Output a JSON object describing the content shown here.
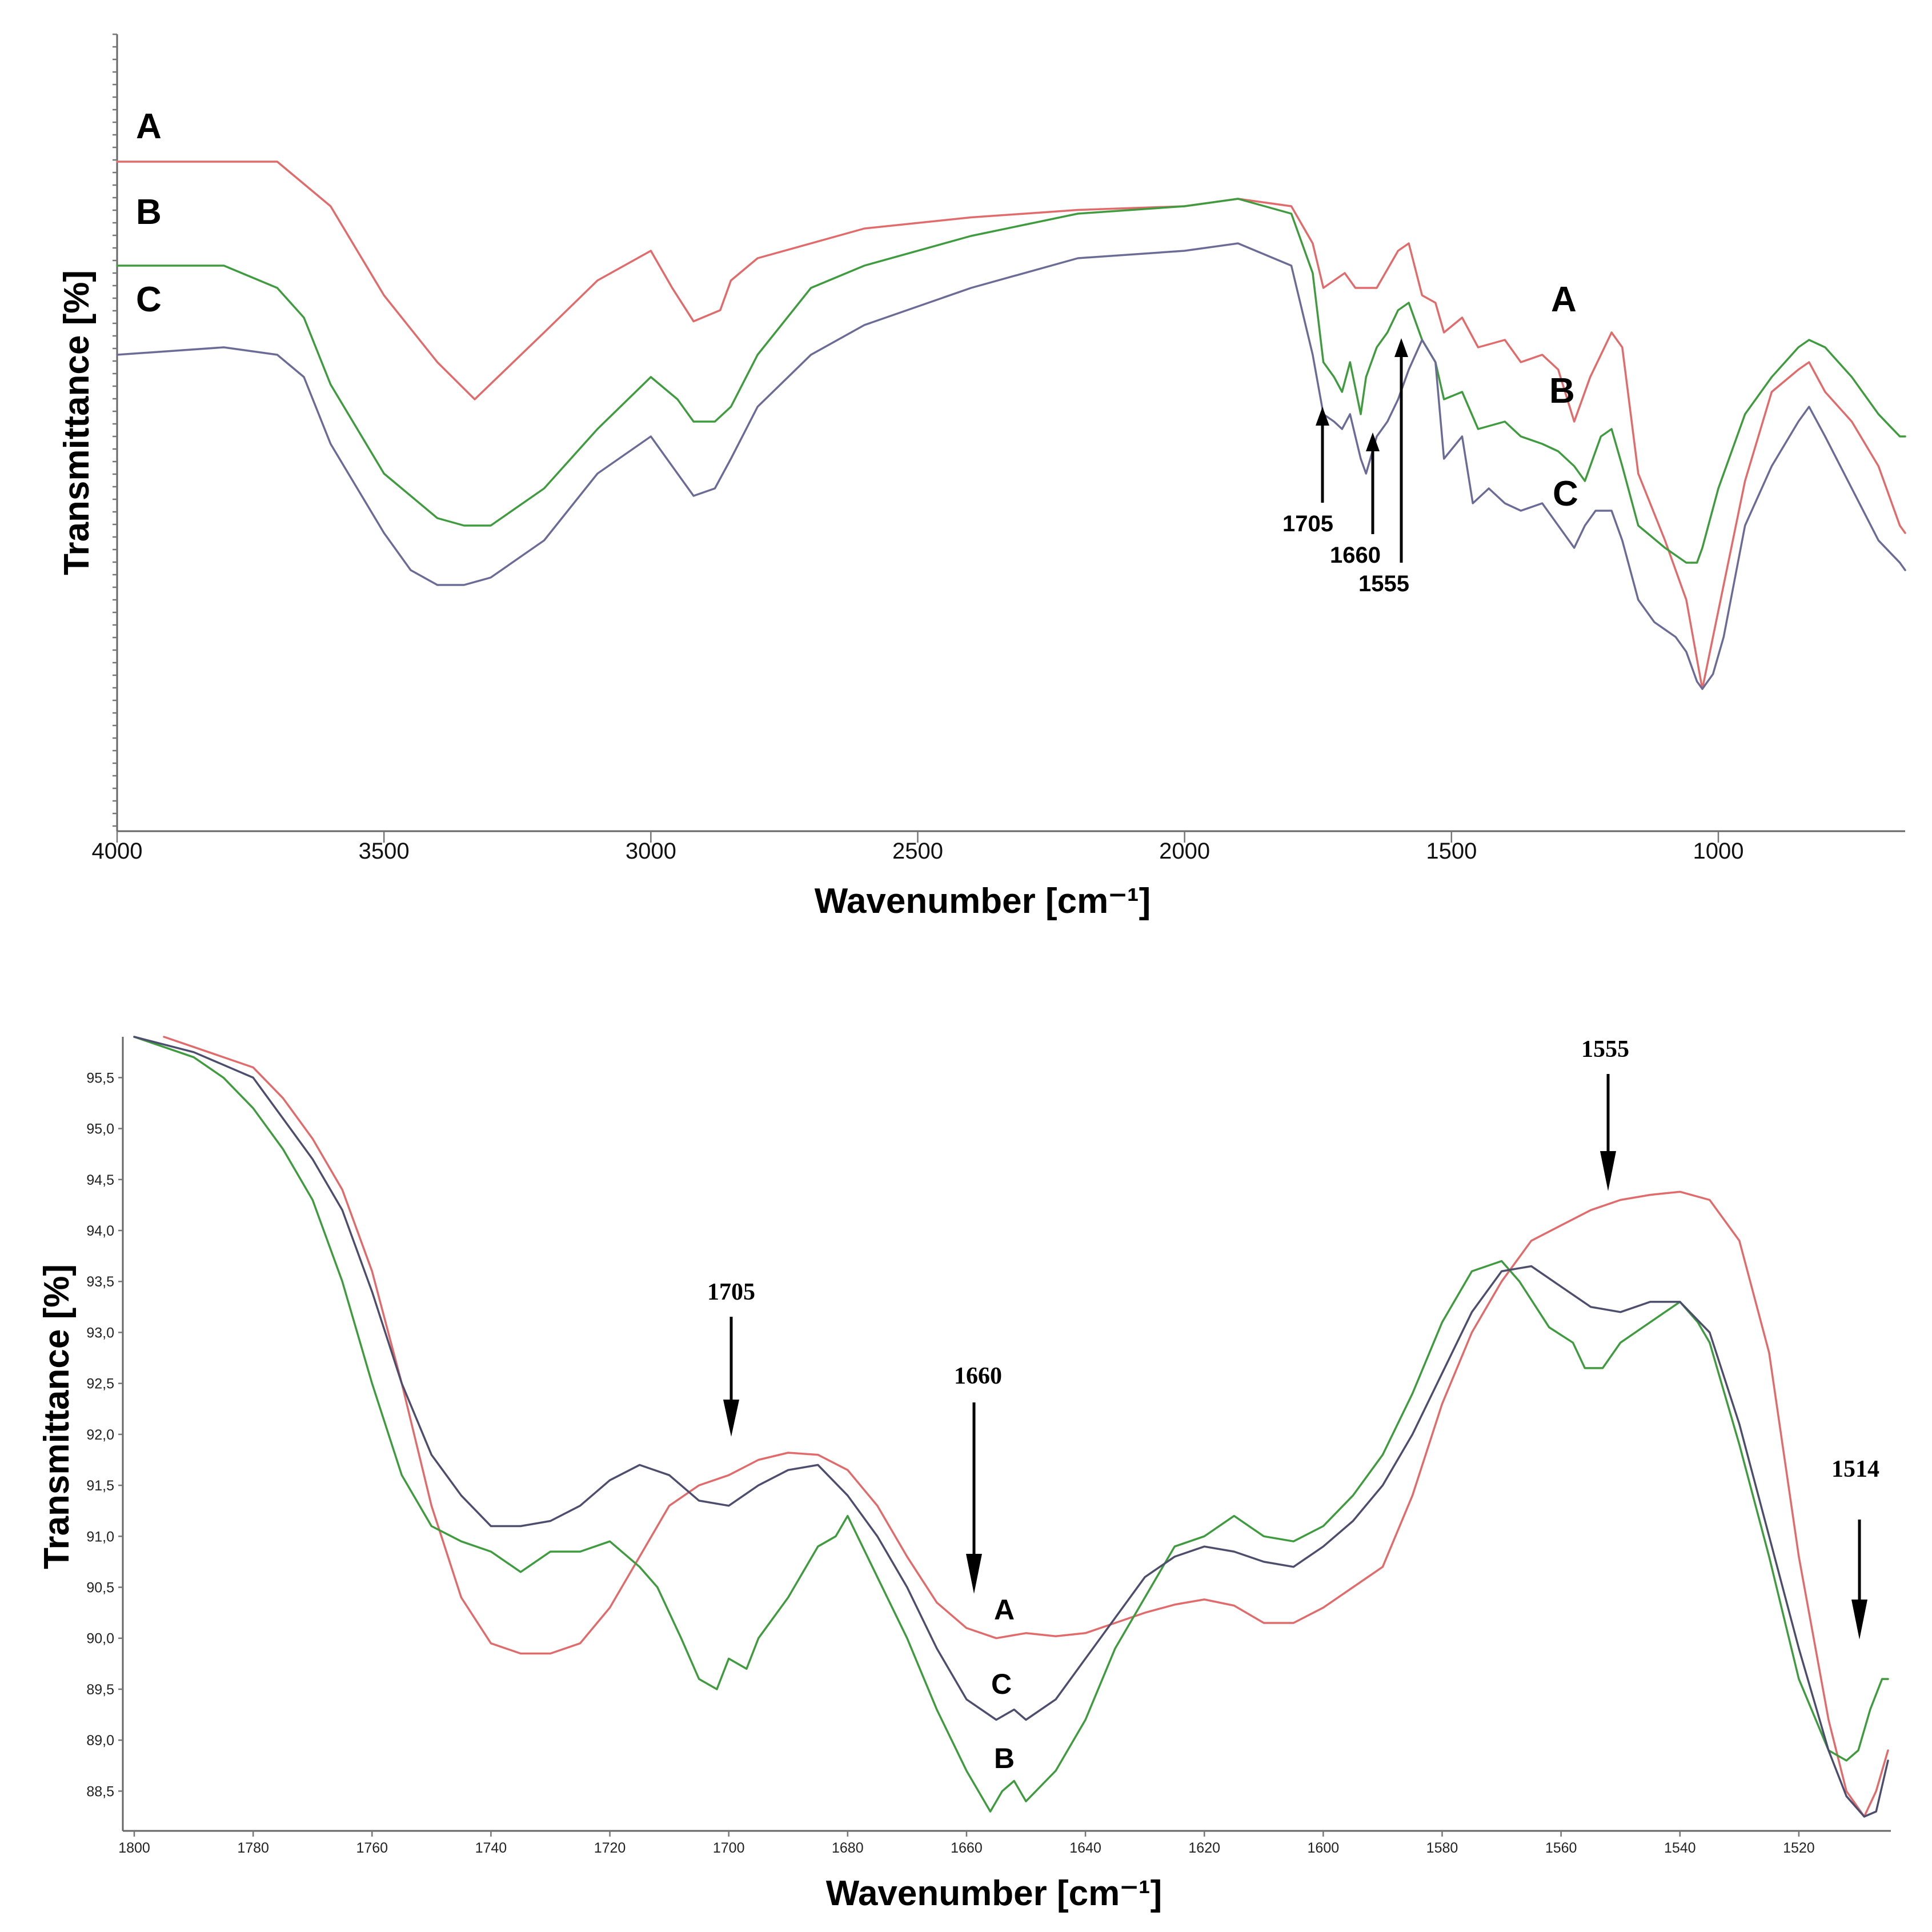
{
  "chart_data": [
    {
      "type": "line",
      "title": "",
      "xlabel": "Wavenumber [cm⁻¹]",
      "ylabel": "Transmittance [%]",
      "xlim": [
        4000,
        650
      ],
      "ylim": [
        0,
        100
      ],
      "x_ticks": [
        "4000",
        "3500",
        "3000",
        "2500",
        "2000",
        "1500",
        "1000"
      ],
      "series": [
        {
          "name": "A",
          "color": "#e26a6a",
          "x": [
            4000,
            3700,
            3600,
            3500,
            3400,
            3330,
            3200,
            3100,
            3000,
            2960,
            2920,
            2870,
            2850,
            2800,
            2600,
            2400,
            2200,
            2000,
            1900,
            1800,
            1760,
            1740,
            1700,
            1680,
            1640,
            1600,
            1580,
            1555,
            1530,
            1514,
            1480,
            1450,
            1400,
            1370,
            1330,
            1300,
            1270,
            1240,
            1200,
            1180,
            1150,
            1100,
            1060,
            1040,
            1030,
            1010,
            990,
            950,
            900,
            850,
            830,
            800,
            750,
            700,
            660,
            650
          ],
          "y": [
            89,
            89,
            83,
            71,
            62,
            57,
            66,
            73,
            77,
            72,
            67.5,
            69,
            73,
            76,
            80,
            81.5,
            82.5,
            83,
            84,
            83,
            78,
            72,
            74,
            72,
            72,
            77,
            78,
            71,
            70,
            66,
            68,
            64,
            65,
            62,
            63,
            61,
            54,
            60,
            66,
            64,
            47,
            38,
            30,
            22,
            18,
            25,
            32,
            46,
            58,
            61,
            62,
            58,
            54,
            48,
            40,
            39
          ]
        },
        {
          "name": "B",
          "color": "#3e9b3e",
          "x": [
            4000,
            3800,
            3700,
            3650,
            3600,
            3500,
            3400,
            3350,
            3300,
            3200,
            3100,
            3000,
            2950,
            2920,
            2880,
            2850,
            2800,
            2700,
            2600,
            2400,
            2200,
            2000,
            1900,
            1800,
            1760,
            1740,
            1720,
            1705,
            1690,
            1670,
            1660,
            1640,
            1620,
            1600,
            1580,
            1555,
            1530,
            1514,
            1480,
            1450,
            1400,
            1370,
            1330,
            1300,
            1270,
            1250,
            1220,
            1200,
            1180,
            1150,
            1100,
            1060,
            1040,
            1030,
            1000,
            950,
            900,
            850,
            830,
            800,
            750,
            700,
            660,
            650
          ],
          "y": [
            75,
            75,
            72,
            68,
            59,
            47,
            41,
            40,
            40,
            45,
            53,
            60,
            57,
            54,
            54,
            56,
            63,
            72,
            75,
            79,
            82,
            83,
            84,
            82,
            74,
            62,
            60,
            58,
            62,
            55,
            60,
            64,
            66,
            69,
            70,
            65,
            62,
            57,
            58,
            53,
            54,
            52,
            51,
            50,
            48,
            46,
            52,
            53,
            48,
            40,
            37,
            35,
            35,
            37,
            45,
            55,
            60,
            64,
            65,
            64,
            60,
            55,
            52,
            52
          ]
        },
        {
          "name": "C",
          "color": "#6b6b98",
          "x": [
            4000,
            3800,
            3700,
            3650,
            3600,
            3500,
            3450,
            3400,
            3350,
            3300,
            3200,
            3100,
            3000,
            2950,
            2920,
            2880,
            2850,
            2800,
            2700,
            2600,
            2400,
            2200,
            2000,
            1900,
            1800,
            1760,
            1740,
            1720,
            1705,
            1690,
            1680,
            1670,
            1660,
            1640,
            1620,
            1600,
            1580,
            1555,
            1530,
            1514,
            1480,
            1460,
            1430,
            1400,
            1370,
            1330,
            1300,
            1270,
            1250,
            1230,
            1200,
            1180,
            1150,
            1120,
            1080,
            1060,
            1040,
            1030,
            1010,
            990,
            950,
            900,
            850,
            830,
            800,
            750,
            700,
            660,
            650
          ],
          "y": [
            63,
            64,
            63,
            60,
            51,
            39,
            34,
            32,
            32,
            33,
            38,
            47,
            52,
            47,
            44,
            45,
            49,
            56,
            63,
            67,
            72,
            76,
            77,
            78,
            75,
            63,
            55,
            54,
            53,
            55,
            52,
            49,
            47,
            52,
            54,
            57,
            61,
            65,
            62,
            49,
            52,
            43,
            45,
            43,
            42,
            43,
            40,
            37,
            40,
            42,
            42,
            38,
            30,
            27,
            25,
            23,
            19,
            18,
            20,
            25,
            40,
            48,
            54,
            56,
            52,
            45,
            38,
            35,
            34
          ]
        }
      ],
      "series_labels": {
        "left": [
          "A",
          "B",
          "C"
        ],
        "right": [
          "A",
          "B",
          "C"
        ]
      },
      "annotations": [
        {
          "text": "1705",
          "x": 1705
        },
        {
          "text": "1660",
          "x": 1660
        },
        {
          "text": "1555",
          "x": 1555
        }
      ]
    },
    {
      "type": "line",
      "title": "",
      "xlabel": "Wavenumber [cm⁻¹]",
      "ylabel": "Transmittance [%]",
      "xlim": [
        1800,
        1505
      ],
      "ylim": [
        88.25,
        95.9
      ],
      "x_ticks": [
        "1800",
        "1780",
        "1760",
        "1740",
        "1720",
        "1700",
        "1680",
        "1660",
        "1640",
        "1620",
        "1600",
        "1580",
        "1560",
        "1540",
        "1520"
      ],
      "y_ticks": [
        "88,5",
        "89,0",
        "89,5",
        "90,0",
        "90,5",
        "91,0",
        "91,5",
        "92,0",
        "92,5",
        "93,0",
        "93,5",
        "94,0",
        "94,5",
        "95,0",
        "95,5"
      ],
      "series": [
        {
          "name": "A",
          "color": "#e26a6a",
          "x": [
            1795,
            1790,
            1780,
            1775,
            1770,
            1765,
            1760,
            1755,
            1750,
            1745,
            1740,
            1735,
            1730,
            1725,
            1720,
            1715,
            1710,
            1705,
            1700,
            1695,
            1690,
            1685,
            1680,
            1675,
            1670,
            1665,
            1660,
            1655,
            1650,
            1645,
            1640,
            1635,
            1630,
            1625,
            1620,
            1615,
            1610,
            1605,
            1600,
            1595,
            1590,
            1585,
            1580,
            1575,
            1570,
            1565,
            1560,
            1555,
            1550,
            1545,
            1540,
            1535,
            1530,
            1525,
            1520,
            1515,
            1512,
            1509,
            1507,
            1505
          ],
          "y": [
            95.9,
            95.8,
            95.6,
            95.3,
            94.9,
            94.4,
            93.6,
            92.5,
            91.3,
            90.4,
            89.95,
            89.85,
            89.85,
            89.95,
            90.3,
            90.8,
            91.3,
            91.5,
            91.6,
            91.75,
            91.82,
            91.8,
            91.65,
            91.3,
            90.8,
            90.35,
            90.1,
            90.0,
            90.05,
            90.02,
            90.05,
            90.15,
            90.25,
            90.33,
            90.38,
            90.32,
            90.15,
            90.15,
            90.3,
            90.5,
            90.7,
            91.4,
            92.3,
            93.0,
            93.5,
            93.9,
            94.05,
            94.2,
            94.3,
            94.35,
            94.38,
            94.3,
            93.9,
            92.8,
            90.8,
            89.2,
            88.5,
            88.25,
            88.5,
            88.9
          ]
        },
        {
          "name": "B",
          "color": "#3e9b3e",
          "x": [
            1800,
            1790,
            1785,
            1780,
            1775,
            1770,
            1765,
            1760,
            1755,
            1750,
            1745,
            1740,
            1735,
            1730,
            1725,
            1720,
            1715,
            1712,
            1708,
            1705,
            1702,
            1700,
            1697,
            1695,
            1690,
            1685,
            1682,
            1680,
            1675,
            1670,
            1665,
            1660,
            1656,
            1654,
            1652,
            1650,
            1645,
            1640,
            1635,
            1630,
            1625,
            1620,
            1615,
            1610,
            1605,
            1600,
            1595,
            1590,
            1585,
            1580,
            1575,
            1570,
            1567,
            1562,
            1558,
            1556,
            1553,
            1550,
            1545,
            1540,
            1537,
            1535,
            1530,
            1525,
            1520,
            1515,
            1512,
            1510,
            1508,
            1506,
            1505
          ],
          "y": [
            95.9,
            95.7,
            95.5,
            95.2,
            94.8,
            94.3,
            93.5,
            92.5,
            91.6,
            91.1,
            90.95,
            90.85,
            90.65,
            90.85,
            90.85,
            90.95,
            90.7,
            90.5,
            90.0,
            89.6,
            89.5,
            89.8,
            89.7,
            90.0,
            90.4,
            90.9,
            91.0,
            91.2,
            90.6,
            90.0,
            89.3,
            88.7,
            88.3,
            88.5,
            88.6,
            88.4,
            88.7,
            89.2,
            89.9,
            90.4,
            90.9,
            91.0,
            91.2,
            91.0,
            90.95,
            91.1,
            91.4,
            91.8,
            92.4,
            93.1,
            93.6,
            93.7,
            93.5,
            93.05,
            92.9,
            92.65,
            92.65,
            92.9,
            93.1,
            93.3,
            93.1,
            92.9,
            91.9,
            90.8,
            89.6,
            88.9,
            88.8,
            88.9,
            89.3,
            89.6,
            89.6
          ]
        },
        {
          "name": "C",
          "color": "#4d4d6e",
          "x": [
            1800,
            1790,
            1780,
            1775,
            1770,
            1765,
            1760,
            1755,
            1750,
            1745,
            1740,
            1735,
            1730,
            1725,
            1720,
            1715,
            1710,
            1705,
            1700,
            1695,
            1690,
            1685,
            1680,
            1675,
            1670,
            1665,
            1660,
            1655,
            1652,
            1650,
            1645,
            1640,
            1635,
            1630,
            1625,
            1620,
            1615,
            1610,
            1605,
            1600,
            1595,
            1590,
            1585,
            1580,
            1575,
            1570,
            1565,
            1560,
            1555,
            1550,
            1545,
            1540,
            1535,
            1530,
            1525,
            1520,
            1515,
            1512,
            1509,
            1507,
            1505
          ],
          "y": [
            95.9,
            95.75,
            95.5,
            95.1,
            94.7,
            94.2,
            93.4,
            92.5,
            91.8,
            91.4,
            91.1,
            91.1,
            91.15,
            91.3,
            91.55,
            91.7,
            91.6,
            91.35,
            91.3,
            91.5,
            91.65,
            91.7,
            91.4,
            91.0,
            90.5,
            89.9,
            89.4,
            89.2,
            89.3,
            89.2,
            89.4,
            89.8,
            90.2,
            90.6,
            90.8,
            90.9,
            90.85,
            90.75,
            90.7,
            90.9,
            91.15,
            91.5,
            92.0,
            92.6,
            93.2,
            93.6,
            93.65,
            93.45,
            93.25,
            93.2,
            93.3,
            93.3,
            93.0,
            92.1,
            91.0,
            89.9,
            88.9,
            88.45,
            88.25,
            88.3,
            88.8
          ]
        }
      ],
      "series_labels": [
        "A",
        "C",
        "B"
      ],
      "annotations": [
        {
          "text": "1705",
          "x": 1700
        },
        {
          "text": "1660",
          "x": 1658
        },
        {
          "text": "1555",
          "x": 1551
        },
        {
          "text": "1514",
          "x": 1508
        }
      ]
    }
  ]
}
